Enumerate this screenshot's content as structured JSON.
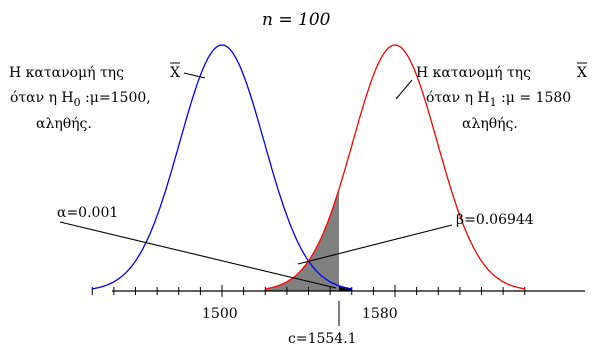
{
  "title": "n = 100",
  "h0": {
    "line1": "Η κατανομή της",
    "xbar": "X",
    "line2_prefix": "όταν η H",
    "line2_sub": "0",
    "line2_suffix": " :μ=1500,",
    "line3": "αληθής.",
    "mu": 1500,
    "color": "#0000ff"
  },
  "h1": {
    "line1": "Η κατανομή της",
    "xbar": "X",
    "line2_prefix": "όταν η H",
    "line2_sub": "1",
    "line2_suffix": " :μ = 1580",
    "line3": "αληθής.",
    "mu": 1580,
    "color": "#ff0000"
  },
  "alpha_label": "α=0.001",
  "beta_label": "β=0.06944",
  "critical_label": "c=1554.1",
  "critical_value": 1554.1,
  "axis_ticks": [
    {
      "value": 1500,
      "label": "1500"
    },
    {
      "value": 1580,
      "label": "1580"
    }
  ],
  "shade_color": "#808080",
  "alpha_color": "#000000"
}
